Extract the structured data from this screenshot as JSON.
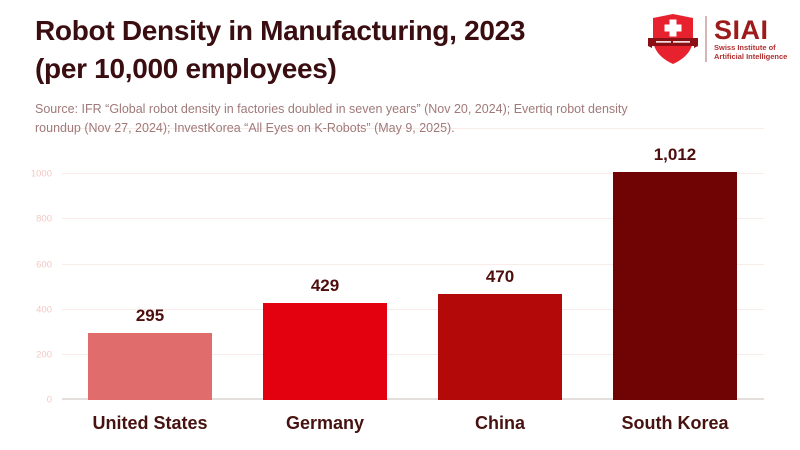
{
  "header": {
    "title_line1": "Robot Density in Manufacturing, 2023",
    "title_line2": "(per 10,000 employees)",
    "source": "Source: IFR “Global robot density in factories doubled in seven years” (Nov 20, 2024); Evertiq robot density roundup (Nov 27, 2024); InvestKorea “All Eyes on K-Robots” (May 9, 2025)."
  },
  "logo": {
    "acronym": "SIAI",
    "subtitle_line1": "Swiss Institute of",
    "subtitle_line2": "Artificial Intelligence"
  },
  "chart_data": {
    "type": "bar",
    "title": "Robot Density in Manufacturing, 2023 (per 10,000 employees)",
    "categories": [
      "United States",
      "Germany",
      "China",
      "South Korea"
    ],
    "values": [
      295,
      429,
      470,
      1012
    ],
    "value_labels": [
      "295",
      "429",
      "470",
      "1,012"
    ],
    "bar_colors": [
      "#e06c6c",
      "#e3000f",
      "#b30909",
      "#700404"
    ],
    "xlabel": "",
    "ylabel": "",
    "ylim": [
      0,
      1200
    ],
    "ytick_interval": 200,
    "ytick_labels": [
      "0",
      "200",
      "400",
      "600",
      "800",
      "1000"
    ],
    "grid": true,
    "legend": "none"
  },
  "colors": {
    "background": "#ffffff",
    "title": "#3a0d10",
    "source": "#a17979",
    "gridline": "#f9ebe8",
    "baseline": "#e4dedc",
    "ytick": "#f3c8c3",
    "value_label": "#4f0e0e",
    "category_label": "#471310",
    "logo_red": "#e8212e",
    "logo_ribbon": "#8a1015",
    "logo_acronym": "#9e1b1b",
    "logo_subtitle": "#b03030",
    "logo_divider": "#d8b5b5"
  }
}
